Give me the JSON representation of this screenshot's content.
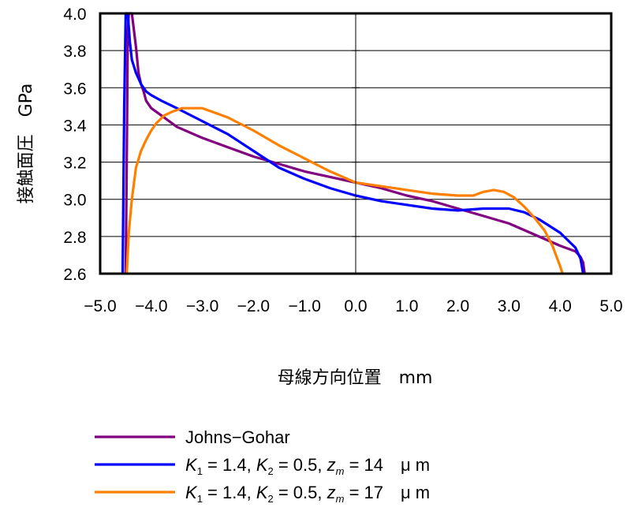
{
  "chart_data": {
    "type": "line",
    "xlabel": "母線方向位置　mm",
    "ylabel": "接触面圧　GPa",
    "xlim": [
      -5.0,
      5.0
    ],
    "ylim": [
      2.6,
      4.0
    ],
    "x_ticks": [
      "−5.0",
      "−4.0",
      "−3.0",
      "−2.0",
      "−1.0",
      "0.0",
      "1.0",
      "2.0",
      "3.0",
      "4.0",
      "5.0"
    ],
    "y_ticks": [
      "2.6",
      "2.8",
      "3.0",
      "3.2",
      "3.4",
      "3.6",
      "3.8",
      "4.0"
    ],
    "grid": "horizontal",
    "legend_position": "bottom",
    "series": [
      {
        "name": "Johns−Gohar",
        "color": "#800080",
        "legend": {
          "parts": [
            {
              "t": "Johns−Gohar"
            }
          ]
        },
        "points": [
          [
            -4.5,
            2.6
          ],
          [
            -4.48,
            3.2
          ],
          [
            -4.46,
            3.9
          ],
          [
            -4.44,
            4.0
          ],
          [
            -4.38,
            4.0
          ],
          [
            -4.3,
            3.82
          ],
          [
            -4.25,
            3.68
          ],
          [
            -4.2,
            3.62
          ],
          [
            -4.15,
            3.58
          ],
          [
            -4.1,
            3.53
          ],
          [
            -4.0,
            3.49
          ],
          [
            -3.8,
            3.45
          ],
          [
            -3.5,
            3.39
          ],
          [
            -3.0,
            3.33
          ],
          [
            -2.5,
            3.28
          ],
          [
            -2.0,
            3.23
          ],
          [
            -1.5,
            3.19
          ],
          [
            -1.0,
            3.15
          ],
          [
            -0.5,
            3.12
          ],
          [
            0.0,
            3.09
          ],
          [
            0.5,
            3.06
          ],
          [
            1.0,
            3.02
          ],
          [
            1.5,
            2.99
          ],
          [
            2.0,
            2.95
          ],
          [
            2.5,
            2.91
          ],
          [
            3.0,
            2.87
          ],
          [
            3.5,
            2.81
          ],
          [
            4.0,
            2.75
          ],
          [
            4.3,
            2.72
          ],
          [
            4.4,
            2.69
          ],
          [
            4.45,
            2.66
          ],
          [
            4.48,
            2.6
          ]
        ]
      },
      {
        "name": "K1 = 1.4, K2 = 0.5, zm = 14 μm",
        "color": "#0000ff",
        "legend": {
          "parts": [
            {
              "t": "K",
              "i": true
            },
            {
              "t": "1",
              "sub": true
            },
            {
              "t": " = 1.4, "
            },
            {
              "t": "K",
              "i": true
            },
            {
              "t": "2",
              "sub": true
            },
            {
              "t": " = 0.5, "
            },
            {
              "t": "z",
              "i": true
            },
            {
              "t": "m",
              "sub": true,
              "i": true
            },
            {
              "t": " = 14　μ m"
            }
          ]
        },
        "points": [
          [
            -4.56,
            2.6
          ],
          [
            -4.53,
            3.5
          ],
          [
            -4.5,
            4.0
          ],
          [
            -4.46,
            4.0
          ],
          [
            -4.42,
            3.85
          ],
          [
            -4.38,
            3.75
          ],
          [
            -4.3,
            3.68
          ],
          [
            -4.2,
            3.62
          ],
          [
            -4.1,
            3.58
          ],
          [
            -4.0,
            3.56
          ],
          [
            -3.8,
            3.53
          ],
          [
            -3.5,
            3.49
          ],
          [
            -3.0,
            3.42
          ],
          [
            -2.5,
            3.35
          ],
          [
            -2.0,
            3.26
          ],
          [
            -1.5,
            3.17
          ],
          [
            -1.0,
            3.11
          ],
          [
            -0.5,
            3.06
          ],
          [
            0.0,
            3.02
          ],
          [
            0.5,
            2.99
          ],
          [
            1.0,
            2.97
          ],
          [
            1.5,
            2.95
          ],
          [
            2.0,
            2.94
          ],
          [
            2.5,
            2.95
          ],
          [
            3.0,
            2.95
          ],
          [
            3.3,
            2.93
          ],
          [
            3.6,
            2.89
          ],
          [
            4.0,
            2.82
          ],
          [
            4.3,
            2.74
          ],
          [
            4.4,
            2.68
          ],
          [
            4.45,
            2.6
          ]
        ]
      },
      {
        "name": "K1 = 1.4, K2 = 0.5, zm = 17 μm",
        "color": "#ff8000",
        "legend": {
          "parts": [
            {
              "t": "K",
              "i": true
            },
            {
              "t": "1",
              "sub": true
            },
            {
              "t": " = 1.4, "
            },
            {
              "t": "K",
              "i": true
            },
            {
              "t": "2",
              "sub": true
            },
            {
              "t": " = 0.5, "
            },
            {
              "t": "z",
              "i": true
            },
            {
              "t": "m",
              "sub": true,
              "i": true
            },
            {
              "t": " = 17　μ m"
            }
          ]
        },
        "points": [
          [
            -4.48,
            2.6
          ],
          [
            -4.44,
            2.82
          ],
          [
            -4.38,
            3.0
          ],
          [
            -4.3,
            3.17
          ],
          [
            -4.2,
            3.26
          ],
          [
            -4.1,
            3.32
          ],
          [
            -4.0,
            3.37
          ],
          [
            -3.9,
            3.41
          ],
          [
            -3.75,
            3.45
          ],
          [
            -3.6,
            3.47
          ],
          [
            -3.4,
            3.49
          ],
          [
            -3.0,
            3.49
          ],
          [
            -2.8,
            3.47
          ],
          [
            -2.5,
            3.44
          ],
          [
            -2.0,
            3.37
          ],
          [
            -1.5,
            3.29
          ],
          [
            -1.0,
            3.22
          ],
          [
            -0.5,
            3.15
          ],
          [
            0.0,
            3.09
          ],
          [
            0.5,
            3.07
          ],
          [
            1.0,
            3.05
          ],
          [
            1.5,
            3.03
          ],
          [
            2.0,
            3.02
          ],
          [
            2.3,
            3.02
          ],
          [
            2.5,
            3.04
          ],
          [
            2.7,
            3.05
          ],
          [
            2.9,
            3.04
          ],
          [
            3.1,
            3.01
          ],
          [
            3.3,
            2.96
          ],
          [
            3.5,
            2.9
          ],
          [
            3.7,
            2.83
          ],
          [
            3.85,
            2.75
          ],
          [
            4.0,
            2.64
          ],
          [
            4.05,
            2.6
          ]
        ]
      }
    ]
  }
}
